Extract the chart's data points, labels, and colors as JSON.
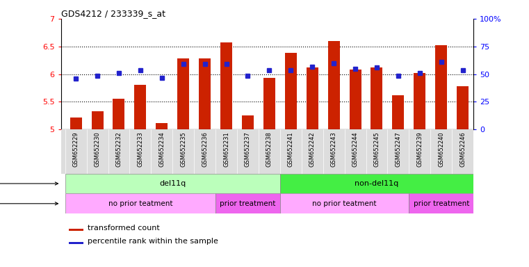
{
  "title": "GDS4212 / 233339_s_at",
  "samples": [
    "GSM652229",
    "GSM652230",
    "GSM652232",
    "GSM652233",
    "GSM652234",
    "GSM652235",
    "GSM652236",
    "GSM652231",
    "GSM652237",
    "GSM652238",
    "GSM652241",
    "GSM652242",
    "GSM652243",
    "GSM652244",
    "GSM652245",
    "GSM652247",
    "GSM652239",
    "GSM652240",
    "GSM652246"
  ],
  "bar_values": [
    5.22,
    5.33,
    5.55,
    5.8,
    5.12,
    6.28,
    6.28,
    6.57,
    5.25,
    5.93,
    6.38,
    6.12,
    6.6,
    6.08,
    6.12,
    5.62,
    6.02,
    6.52,
    5.78
  ],
  "dot_values": [
    5.92,
    5.97,
    6.02,
    6.07,
    5.93,
    6.18,
    6.18,
    6.18,
    5.97,
    6.07,
    6.07,
    6.13,
    6.2,
    6.1,
    6.12,
    5.97,
    6.02,
    6.22,
    6.07
  ],
  "ylim_left": [
    5.0,
    7.0
  ],
  "ylim_right": [
    0,
    100
  ],
  "yticks_left": [
    5.0,
    5.5,
    6.0,
    6.5,
    7.0
  ],
  "yticks_right": [
    0,
    25,
    50,
    75,
    100
  ],
  "bar_color": "#cc2200",
  "dot_color": "#2222cc",
  "genotype_groups": [
    {
      "label": "del11q",
      "start": 0,
      "end": 9,
      "color": "#bbffbb"
    },
    {
      "label": "non-del11q",
      "start": 10,
      "end": 18,
      "color": "#44ee44"
    }
  ],
  "treatment_groups": [
    {
      "label": "no prior teatment",
      "start": 0,
      "end": 6,
      "color": "#ffaaff"
    },
    {
      "label": "prior treatment",
      "start": 7,
      "end": 9,
      "color": "#ee66ee"
    },
    {
      "label": "no prior teatment",
      "start": 10,
      "end": 15,
      "color": "#ffaaff"
    },
    {
      "label": "prior treatment",
      "start": 16,
      "end": 18,
      "color": "#ee66ee"
    }
  ],
  "bar_width": 0.55,
  "xlim": [
    -0.7,
    18.5
  ]
}
